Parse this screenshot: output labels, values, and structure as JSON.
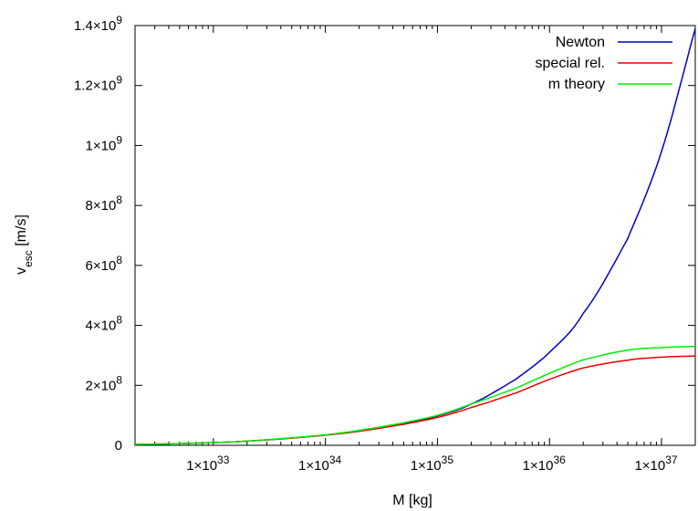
{
  "chart_data": {
    "type": "line",
    "xlabel": "M [kg]",
    "ylabel": "v_esc [m/s]",
    "ylabel_parts": {
      "main": "v",
      "sub": "esc",
      "rest": " [m/s]"
    },
    "x_scale": "log",
    "xlim": [
      2e+32,
      2e+37
    ],
    "ylim": [
      0,
      1400000000.0
    ],
    "grid": false,
    "legend_position": "top-right",
    "x_ticks": [
      {
        "value": 1e+33,
        "mantissa": "1×10",
        "exp": "33"
      },
      {
        "value": 1e+34,
        "mantissa": "1×10",
        "exp": "34"
      },
      {
        "value": 1e+35,
        "mantissa": "1×10",
        "exp": "35"
      },
      {
        "value": 1e+36,
        "mantissa": "1×10",
        "exp": "36"
      },
      {
        "value": 1e+37,
        "mantissa": "1×10",
        "exp": "37"
      }
    ],
    "y_ticks": [
      {
        "value": 0,
        "mantissa": "0",
        "exp": ""
      },
      {
        "value": 200000000.0,
        "mantissa": "2×10",
        "exp": "8"
      },
      {
        "value": 400000000.0,
        "mantissa": "4×10",
        "exp": "8"
      },
      {
        "value": 600000000.0,
        "mantissa": "6×10",
        "exp": "8"
      },
      {
        "value": 800000000.0,
        "mantissa": "8×10",
        "exp": "8"
      },
      {
        "value": 1000000000.0,
        "mantissa": "1×10",
        "exp": "9"
      },
      {
        "value": 1200000000.0,
        "mantissa": "1.2×10",
        "exp": "9"
      },
      {
        "value": 1400000000.0,
        "mantissa": "1.4×10",
        "exp": "9"
      }
    ],
    "series": [
      {
        "name": "Newton",
        "color": "#0000cc",
        "x": [
          2e+32,
          5e+32,
          1e+33,
          2e+33,
          5e+33,
          1e+34,
          2e+34,
          5e+34,
          1e+35,
          2e+35,
          5e+35,
          1e+36,
          2e+36,
          5e+36,
          1e+37,
          2e+37
        ],
        "y": [
          3000000.0,
          5500000.0,
          9000000.0,
          14000000.0,
          24000000.0,
          34000000.0,
          48000000.0,
          72000000.0,
          98000000.0,
          138000000.0,
          220000000.0,
          310000000.0,
          440000000.0,
          690000000.0,
          980000000.0,
          1390000000.0
        ]
      },
      {
        "name": "special rel.",
        "color": "#ee0000",
        "x": [
          2e+32,
          5e+32,
          1e+33,
          2e+33,
          5e+33,
          1e+34,
          2e+34,
          5e+34,
          1e+35,
          2e+35,
          5e+35,
          1e+36,
          2e+36,
          5e+36,
          1e+37,
          2e+37
        ],
        "y": [
          3000000.0,
          5500000.0,
          9000000.0,
          14000000.0,
          24000000.0,
          34000000.0,
          47000000.0,
          70000000.0,
          93000000.0,
          126000000.0,
          174000000.0,
          220000000.0,
          258000000.0,
          284000000.0,
          294000000.0,
          298000000.0
        ]
      },
      {
        "name": "m theory",
        "color": "#00ee00",
        "x": [
          2e+32,
          5e+32,
          1e+33,
          2e+33,
          5e+33,
          1e+34,
          2e+34,
          5e+34,
          1e+35,
          2e+35,
          5e+35,
          1e+36,
          2e+36,
          5e+36,
          1e+37,
          2e+37
        ],
        "y": [
          3000000.0,
          5500000.0,
          9000000.0,
          14000000.0,
          25000000.0,
          35000000.0,
          50000000.0,
          75000000.0,
          100000000.0,
          138000000.0,
          190000000.0,
          240000000.0,
          285000000.0,
          317000000.0,
          326000000.0,
          330000000.0
        ]
      }
    ]
  }
}
